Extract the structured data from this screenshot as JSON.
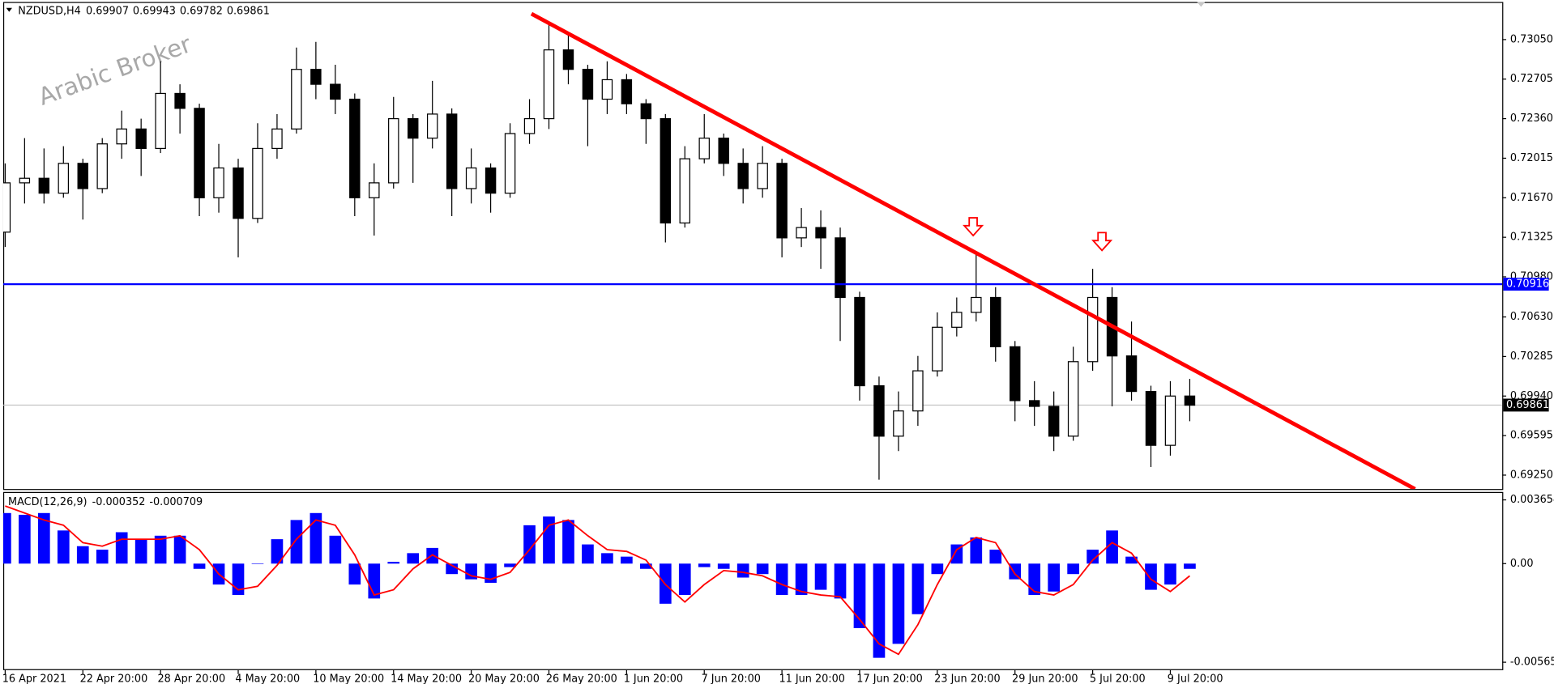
{
  "chart_data": [
    {
      "type": "candlestick",
      "title": "NZDUSD,H4",
      "header_values": [
        0.69907,
        0.69943,
        0.69782,
        0.69861
      ],
      "watermark": "Arabic Broker",
      "categories": [
        "16 Apr 2021",
        null,
        null,
        null,
        "22 Apr 20:00",
        null,
        null,
        null,
        "28 Apr 20:00",
        null,
        null,
        null,
        "4 May 20:00",
        null,
        null,
        null,
        "10 May 20:00",
        null,
        null,
        null,
        "14 May 20:00",
        null,
        null,
        null,
        "20 May 20:00",
        null,
        null,
        null,
        "26 May 20:00",
        null,
        null,
        null,
        "1 Jun 20:00",
        null,
        null,
        null,
        "7 Jun 20:00",
        null,
        null,
        null,
        "11 Jun 20:00",
        null,
        null,
        null,
        "17 Jun 20:00",
        null,
        null,
        null,
        "23 Jun 20:00",
        null,
        null,
        null,
        "29 Jun 20:00",
        null,
        null,
        null,
        "5 Jul 20:00",
        null,
        null,
        null,
        "9 Jul 20:00",
        null
      ],
      "open": [
        0.7137,
        0.718,
        0.7184,
        0.7171,
        0.7197,
        0.7175,
        0.7214,
        0.7227,
        0.721,
        0.7258,
        0.7245,
        0.7167,
        0.7193,
        0.7149,
        0.721,
        0.7227,
        0.7279,
        0.7266,
        0.7253,
        0.7167,
        0.718,
        0.7236,
        0.7219,
        0.724,
        0.7175,
        0.7193,
        0.7171,
        0.7223,
        0.7236,
        0.7296,
        0.7279,
        0.7253,
        0.727,
        0.7249,
        0.7236,
        0.7145,
        0.7201,
        0.7219,
        0.7197,
        0.7175,
        0.7197,
        0.7132,
        0.7141,
        0.7132,
        0.708,
        0.7003,
        0.6959,
        0.6981,
        0.7016,
        0.7054,
        0.7067,
        0.708,
        0.7037,
        0.699,
        0.6985,
        0.6959,
        0.7024,
        0.708,
        0.7029,
        0.6998,
        0.6951,
        0.6994
      ],
      "high": [
        0.7197,
        0.7219,
        0.721,
        0.7212,
        0.7201,
        0.7219,
        0.7243,
        0.7236,
        0.7286,
        0.7266,
        0.7249,
        0.7214,
        0.7201,
        0.7232,
        0.724,
        0.7298,
        0.7303,
        0.7283,
        0.7258,
        0.7197,
        0.7255,
        0.724,
        0.7269,
        0.7245,
        0.721,
        0.7197,
        0.7232,
        0.7253,
        0.7318,
        0.7309,
        0.7283,
        0.7286,
        0.7275,
        0.7253,
        0.724,
        0.7212,
        0.724,
        0.7223,
        0.721,
        0.7212,
        0.7201,
        0.7158,
        0.7156,
        0.7141,
        0.7085,
        0.7011,
        0.6998,
        0.7029,
        0.7067,
        0.708,
        0.7119,
        0.7089,
        0.7042,
        0.7007,
        0.6998,
        0.7037,
        0.7105,
        0.7089,
        0.7059,
        0.7003,
        0.7007,
        0.7009
      ],
      "low": [
        0.7124,
        0.7162,
        0.7162,
        0.7167,
        0.7148,
        0.7171,
        0.7201,
        0.7186,
        0.7206,
        0.7223,
        0.7151,
        0.7154,
        0.7115,
        0.7145,
        0.7201,
        0.7223,
        0.7253,
        0.724,
        0.7151,
        0.7134,
        0.7175,
        0.718,
        0.721,
        0.7151,
        0.7162,
        0.7154,
        0.7167,
        0.7214,
        0.7227,
        0.7266,
        0.7212,
        0.724,
        0.724,
        0.7214,
        0.7128,
        0.7141,
        0.7197,
        0.7186,
        0.7162,
        0.7167,
        0.7115,
        0.7124,
        0.7105,
        0.7042,
        0.699,
        0.6921,
        0.6946,
        0.6968,
        0.7011,
        0.7046,
        0.7059,
        0.7024,
        0.6972,
        0.6968,
        0.6946,
        0.6955,
        0.7016,
        0.6985,
        0.699,
        0.6932,
        0.6942,
        0.6972
      ],
      "close": [
        0.718,
        0.7184,
        0.7171,
        0.7197,
        0.7175,
        0.7214,
        0.7227,
        0.721,
        0.7258,
        0.7245,
        0.7167,
        0.7193,
        0.7149,
        0.721,
        0.7227,
        0.7279,
        0.7266,
        0.7253,
        0.7167,
        0.718,
        0.7236,
        0.7219,
        0.724,
        0.7175,
        0.7193,
        0.7171,
        0.7223,
        0.7236,
        0.7296,
        0.7279,
        0.7253,
        0.727,
        0.7249,
        0.7236,
        0.7145,
        0.7201,
        0.7219,
        0.7197,
        0.7175,
        0.7197,
        0.7132,
        0.7141,
        0.7132,
        0.708,
        0.7003,
        0.6959,
        0.6981,
        0.7016,
        0.7054,
        0.7067,
        0.708,
        0.7037,
        0.699,
        0.6985,
        0.6959,
        0.7024,
        0.708,
        0.7029,
        0.6998,
        0.6951,
        0.6994,
        0.6986
      ],
      "up_color": "#ffffff",
      "down_color": "#000000",
      "wick_color": "#000000",
      "ylim": [
        0.69129,
        0.73378
      ],
      "yticks": [
        {
          "value": 0.7305,
          "label": "0.73050"
        },
        0.72705,
        {
          "value": 0.7236,
          "label": "0.72360"
        },
        0.72015,
        {
          "value": 0.7167,
          "label": "0.71670"
        },
        0.71325,
        {
          "value": 0.7098,
          "label": "0.70980"
        },
        {
          "value": 0.7063,
          "label": "0.70630"
        },
        0.70285,
        {
          "value": 0.6994,
          "label": "0.69940"
        },
        0.69595,
        {
          "value": 0.6925,
          "label": "0.69250"
        }
      ],
      "grid": false,
      "hline": {
        "value": 0.70916,
        "color": "#0000ff"
      },
      "last_price": 0.69861,
      "last_price_color": "#000000",
      "trendline": {
        "color": "#ff0000",
        "x": [
          27.1,
          72.6
        ],
        "y": [
          0.73275,
          0.69129
        ]
      }
    },
    {
      "type": "macd",
      "title": "MACD(12,26,9)",
      "header_values": [
        -0.000352,
        -0.000709
      ],
      "histogram": {
        "color": "#0000ff",
        "values": [
          0.0029,
          0.0028,
          0.0029,
          0.0019,
          0.001,
          0.0008,
          0.0018,
          0.0014,
          0.0016,
          0.0016,
          -0.0003,
          -0.0012,
          -0.0018,
          0,
          0.0014,
          0.0025,
          0.0029,
          0.0016,
          -0.0012,
          -0.002,
          0.0001,
          0.0006,
          0.0009,
          -0.0006,
          -0.0009,
          -0.0011,
          -0.0002,
          0.0022,
          0.0027,
          0.0025,
          0.0011,
          0.0006,
          0.0004,
          -0.0003,
          -0.0023,
          -0.0018,
          -0.0002,
          -0.0003,
          -0.0008,
          -0.0006,
          -0.0018,
          -0.0018,
          -0.0015,
          -0.002,
          -0.0037,
          -0.0054,
          -0.0046,
          -0.0029,
          -0.0006,
          0.0011,
          0.0015,
          0.0008,
          -0.0009,
          -0.0018,
          -0.0016,
          -0.0006,
          0.0008,
          0.0019,
          0.0004,
          -0.0015,
          -0.0012,
          -0.0003
        ]
      },
      "signal": {
        "color": "#ff0000",
        "values": [
          0.0033,
          0.0029,
          0.0025,
          0.0022,
          0.0012,
          0.001,
          0.0014,
          0.0014,
          0.0014,
          0.0016,
          0.0008,
          -0.0006,
          -0.0015,
          -0.0013,
          -0.0001,
          0.0014,
          0.0025,
          0.0022,
          0.0005,
          -0.0018,
          -0.0015,
          -0.0003,
          0.0005,
          -0.0001,
          -0.0007,
          -0.0009,
          -0.0005,
          0.0008,
          0.0022,
          0.0025,
          0.0016,
          0.0008,
          0.0007,
          0.0002,
          -0.0012,
          -0.0022,
          -0.0012,
          -0.0004,
          -0.0005,
          -0.0007,
          -0.0012,
          -0.0016,
          -0.0018,
          -0.0019,
          -0.0032,
          -0.0046,
          -0.0052,
          -0.0035,
          -0.0012,
          0.0008,
          0.0015,
          0.0012,
          -0.0006,
          -0.0016,
          -0.0018,
          -0.0012,
          0.0002,
          0.0012,
          0.0006,
          -0.0009,
          -0.0016,
          -0.0007
        ]
      },
      "ylim": [
        -0.006051,
        0.004108
      ],
      "yticks": [
        0.003654,
        {
          "value": 0,
          "label": "0.00"
        },
        -0.005654
      ]
    }
  ]
}
